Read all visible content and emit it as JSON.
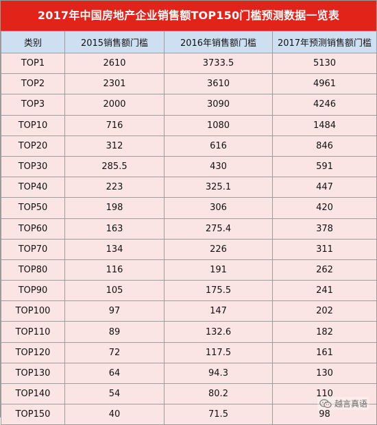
{
  "title": "2017年中国房地产企业销售额TOP150门槛预测数据一览表",
  "headers": [
    "类别",
    "2015销售额门槛",
    "2016年销售额门槛",
    "2017年预测销售额门槛"
  ],
  "rows": [
    [
      "TOP1",
      "2610",
      "3733.5",
      "5130"
    ],
    [
      "TOP2",
      "2301",
      "3610",
      "4961"
    ],
    [
      "TOP3",
      "2000",
      "3090",
      "4246"
    ],
    [
      "TOP10",
      "716",
      "1080",
      "1484"
    ],
    [
      "TOP20",
      "312",
      "616",
      "846"
    ],
    [
      "TOP30",
      "285.5",
      "430",
      "591"
    ],
    [
      "TOP40",
      "223",
      "325.1",
      "447"
    ],
    [
      "TOP50",
      "198",
      "306",
      "420"
    ],
    [
      "TOP60",
      "163",
      "275.4",
      "378"
    ],
    [
      "TOP70",
      "134",
      "226",
      "311"
    ],
    [
      "TOP80",
      "116",
      "191",
      "262"
    ],
    [
      "TOP90",
      "105",
      "175.5",
      "241"
    ],
    [
      "TOP100",
      "97",
      "147",
      "202"
    ],
    [
      "TOP110",
      "89",
      "132.6",
      "182"
    ],
    [
      "TOP120",
      "72",
      "117.5",
      "161"
    ],
    [
      "TOP130",
      "64",
      "94.3",
      "130"
    ],
    [
      "TOP140",
      "54",
      "80.2",
      "110"
    ],
    [
      "TOP150",
      "40",
      "71.5",
      "98"
    ]
  ],
  "watermark": {
    "text": "越言真语",
    "icon": "wechat-icon"
  },
  "colors": {
    "title_bg": "#e2231a",
    "header_bg": "#cfdff2",
    "row_bg": "#fbe4e4"
  }
}
